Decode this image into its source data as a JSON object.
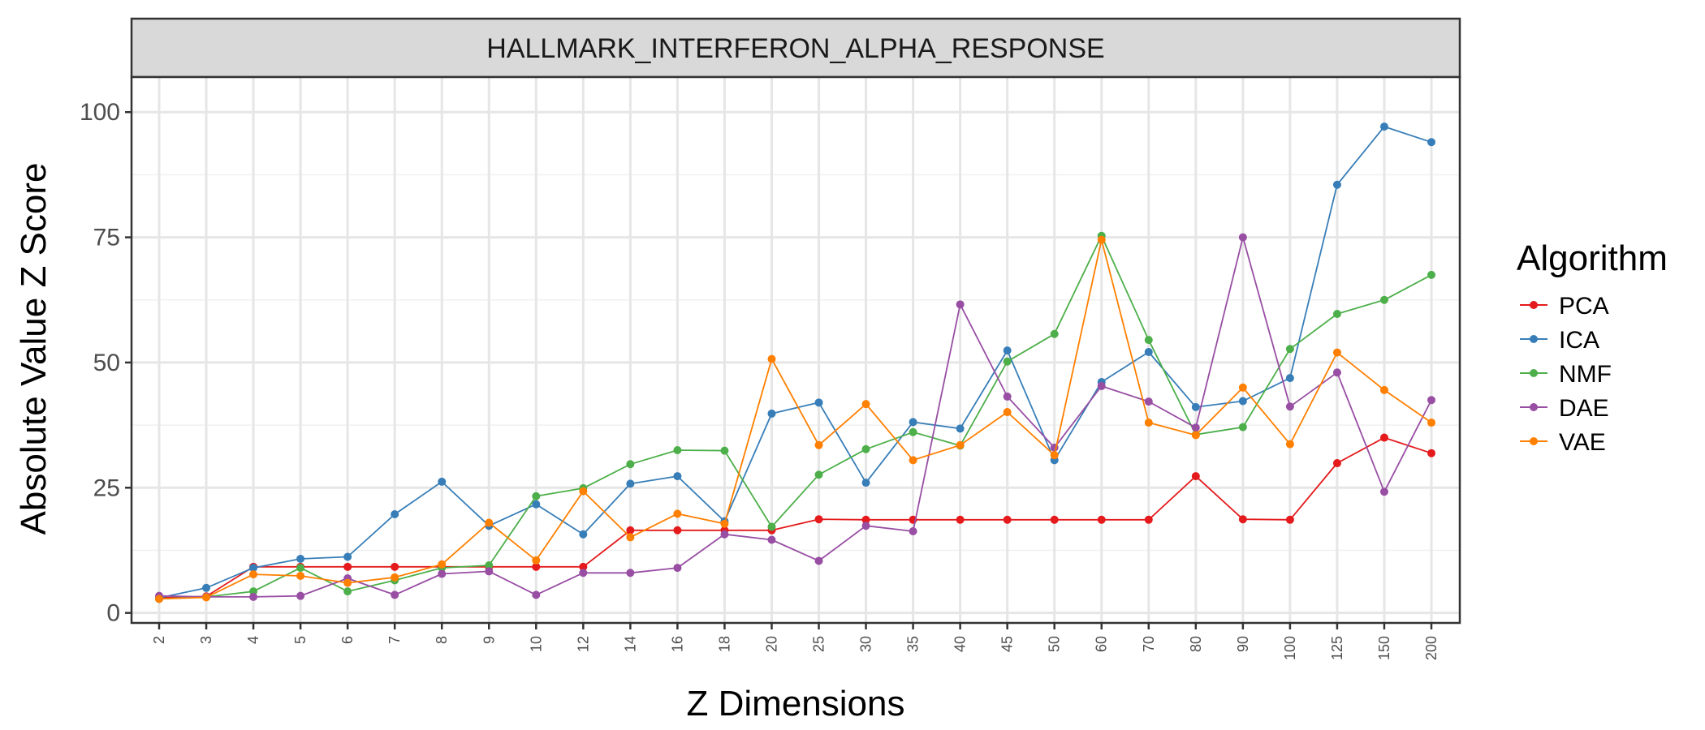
{
  "chart_data": {
    "type": "line",
    "title": "HALLMARK_INTERFERON_ALPHA_RESPONSE",
    "xlabel": "Z Dimensions",
    "ylabel": "Absolute Value Z Score",
    "legend_title": "Algorithm",
    "legend_position": "right",
    "grid": true,
    "ylim": [
      -2,
      107
    ],
    "yticks": [
      0,
      25,
      50,
      75,
      100
    ],
    "categories": [
      "2",
      "3",
      "4",
      "5",
      "6",
      "7",
      "8",
      "9",
      "10",
      "12",
      "14",
      "16",
      "18",
      "20",
      "25",
      "30",
      "35",
      "40",
      "45",
      "50",
      "60",
      "70",
      "80",
      "90",
      "100",
      "125",
      "150",
      "200"
    ],
    "series": [
      {
        "name": "PCA",
        "color": "#e41a1c",
        "values": [
          3.0,
          3.3,
          9.2,
          9.2,
          9.2,
          9.2,
          9.2,
          9.2,
          9.2,
          9.2,
          16.5,
          16.5,
          16.5,
          16.5,
          18.7,
          18.6,
          18.6,
          18.6,
          18.6,
          18.6,
          18.6,
          18.6,
          27.3,
          18.7,
          18.6,
          29.9,
          35.0,
          31.9
        ]
      },
      {
        "name": "ICA",
        "color": "#377eb8",
        "values": [
          3.0,
          5.0,
          9.0,
          10.8,
          11.2,
          19.7,
          26.2,
          17.4,
          21.7,
          15.7,
          25.8,
          27.3,
          18.3,
          39.8,
          42.0,
          26.0,
          38.1,
          36.8,
          52.4,
          30.5,
          46.1,
          52.1,
          41.1,
          42.3,
          46.9,
          85.5,
          97.1,
          94.0
        ]
      },
      {
        "name": "NMF",
        "color": "#4daf4a",
        "values": [
          2.8,
          3.2,
          4.3,
          9.0,
          4.3,
          6.5,
          9.0,
          9.5,
          23.3,
          24.9,
          29.7,
          32.5,
          32.4,
          17.2,
          27.6,
          32.7,
          36.1,
          33.4,
          50.2,
          55.7,
          75.3,
          54.5,
          35.6,
          37.1,
          52.7,
          59.7,
          62.5,
          67.5
        ]
      },
      {
        "name": "DAE",
        "color": "#984ea3",
        "values": [
          3.4,
          3.2,
          3.2,
          3.4,
          6.9,
          3.6,
          7.8,
          8.3,
          3.6,
          8.0,
          8.0,
          9.0,
          15.7,
          14.6,
          10.4,
          17.4,
          16.3,
          61.6,
          43.2,
          33.0,
          45.3,
          42.2,
          37.0,
          75.0,
          41.2,
          48.0,
          24.2,
          42.5
        ]
      },
      {
        "name": "VAE",
        "color": "#ff7f00",
        "values": [
          2.8,
          3.1,
          7.7,
          7.4,
          6.0,
          7.1,
          9.7,
          18.0,
          10.5,
          24.3,
          15.1,
          19.8,
          17.8,
          50.7,
          33.5,
          41.7,
          30.5,
          33.5,
          40.1,
          31.5,
          74.5,
          38.0,
          35.5,
          45.0,
          33.7,
          52.0,
          44.5,
          38.0
        ]
      }
    ]
  }
}
